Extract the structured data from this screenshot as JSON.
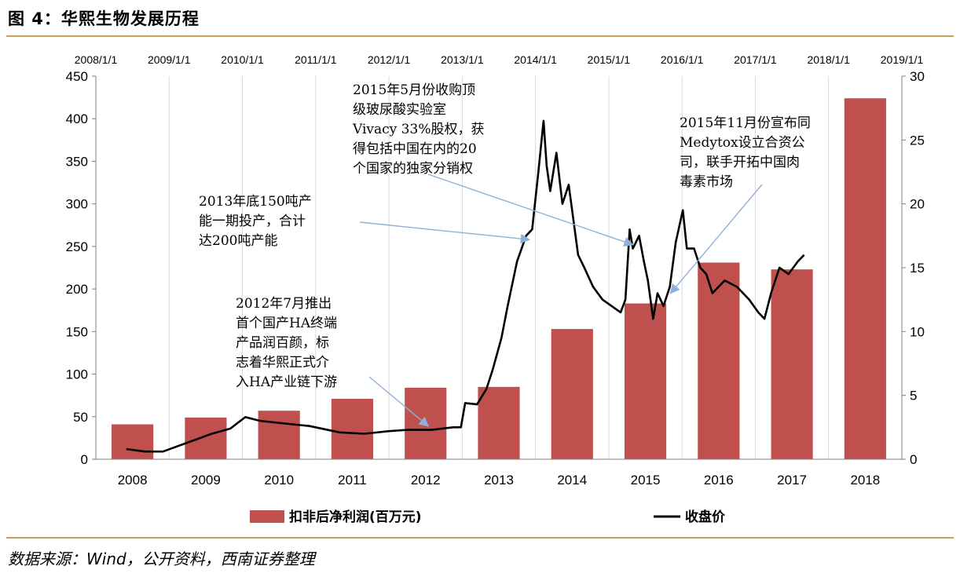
{
  "figure": {
    "title": "图 4：华熙生物发展历程",
    "source": "数据来源：Wind，公开资料，西南证券整理"
  },
  "colors": {
    "bar": "#c0504d",
    "line": "#000000",
    "rule": "#c8a25a",
    "grid": "#d9d9d9",
    "arrow": "#8fb0d8"
  },
  "chart_data": {
    "type": "bar",
    "categories": [
      "2008",
      "2009",
      "2010",
      "2011",
      "2012",
      "2013",
      "2014",
      "2015",
      "2016",
      "2017",
      "2018"
    ],
    "top_axis_ticks": [
      "2008/1/1",
      "2009/1/1",
      "2010/1/1",
      "2011/1/1",
      "2012/1/1",
      "2013/1/1",
      "2014/1/1",
      "2015/1/1",
      "2016/1/1",
      "2017/1/1",
      "2018/1/1",
      "2019/1/1"
    ],
    "left_axis": {
      "min": 0,
      "max": 450,
      "ticks": [
        0,
        50,
        100,
        150,
        200,
        250,
        300,
        350,
        400,
        450
      ]
    },
    "right_axis": {
      "min": 0,
      "max": 30,
      "ticks": [
        0,
        5,
        10,
        15,
        20,
        25,
        30
      ]
    },
    "grid": "vertical",
    "legend_position": "bottom",
    "series": [
      {
        "name": "扣非后净利润(百万元)",
        "type": "bar",
        "axis": "left",
        "values": [
          41,
          49,
          57,
          71,
          84,
          85,
          153,
          183,
          231,
          223,
          424
        ]
      },
      {
        "name": "收盘价",
        "type": "line",
        "axis": "right",
        "points": [
          [
            "2008-06-01",
            0.8
          ],
          [
            "2008-09-01",
            0.6
          ],
          [
            "2008-12-01",
            0.6
          ],
          [
            "2009-04-01",
            1.3
          ],
          [
            "2009-08-01",
            2.0
          ],
          [
            "2009-11-01",
            2.4
          ],
          [
            "2010-01-15",
            3.3
          ],
          [
            "2010-04-01",
            3.0
          ],
          [
            "2010-08-01",
            2.8
          ],
          [
            "2010-12-01",
            2.6
          ],
          [
            "2011-05-01",
            2.1
          ],
          [
            "2011-09-01",
            2.0
          ],
          [
            "2012-01-01",
            2.2
          ],
          [
            "2012-04-01",
            2.3
          ],
          [
            "2012-08-01",
            2.3
          ],
          [
            "2012-11-15",
            2.5
          ],
          [
            "2012-12-25",
            2.5
          ],
          [
            "2013-01-15",
            4.4
          ],
          [
            "2013-03-15",
            4.3
          ],
          [
            "2013-05-01",
            5.5
          ],
          [
            "2013-06-01",
            7.0
          ],
          [
            "2013-07-15",
            9.5
          ],
          [
            "2013-08-15",
            12.0
          ],
          [
            "2013-10-01",
            15.5
          ],
          [
            "2013-11-15",
            17.5
          ],
          [
            "2013-12-15",
            18.0
          ],
          [
            "2014-01-15",
            22.5
          ],
          [
            "2014-02-10",
            26.5
          ],
          [
            "2014-02-25",
            23.0
          ],
          [
            "2014-03-15",
            21.0
          ],
          [
            "2014-04-15",
            24.0
          ],
          [
            "2014-05-15",
            20.0
          ],
          [
            "2014-06-15",
            21.5
          ],
          [
            "2014-08-01",
            16.0
          ],
          [
            "2014-09-01",
            15.0
          ],
          [
            "2014-10-15",
            13.5
          ],
          [
            "2014-12-01",
            12.5
          ],
          [
            "2015-01-15",
            12.0
          ],
          [
            "2015-03-01",
            11.5
          ],
          [
            "2015-03-25",
            12.5
          ],
          [
            "2015-04-15",
            18.0
          ],
          [
            "2015-05-01",
            16.5
          ],
          [
            "2015-06-01",
            17.5
          ],
          [
            "2015-06-25",
            15.5
          ],
          [
            "2015-07-15",
            14.0
          ],
          [
            "2015-08-10",
            11.0
          ],
          [
            "2015-09-01",
            13.0
          ],
          [
            "2015-10-01",
            12.0
          ],
          [
            "2015-11-01",
            13.5
          ],
          [
            "2015-12-01",
            17.0
          ],
          [
            "2016-01-05",
            19.5
          ],
          [
            "2016-01-25",
            16.5
          ],
          [
            "2016-03-01",
            16.5
          ],
          [
            "2016-04-01",
            15.0
          ],
          [
            "2016-05-01",
            14.5
          ],
          [
            "2016-06-01",
            13.0
          ],
          [
            "2016-07-01",
            13.5
          ],
          [
            "2016-08-01",
            14.0
          ],
          [
            "2016-10-01",
            13.5
          ],
          [
            "2016-12-01",
            12.5
          ],
          [
            "2017-01-15",
            11.5
          ],
          [
            "2017-02-15",
            11.0
          ],
          [
            "2017-03-20",
            13.0
          ],
          [
            "2017-05-01",
            15.0
          ],
          [
            "2017-06-15",
            14.5
          ],
          [
            "2017-08-01",
            15.5
          ],
          [
            "2017-09-01",
            16.0
          ]
        ]
      }
    ],
    "annotations": [
      {
        "lines": [
          "2012年7月推出",
          "首个国产HA终端",
          "产品润百颜，标",
          "志着华熙正式介",
          "入HA产业链下游"
        ],
        "target_date": "2012-07-15",
        "target_value": 2.6
      },
      {
        "lines": [
          "2013年底150吨产",
          "能一期投产，合计",
          "达200吨产能"
        ],
        "target_date": "2013-12-01",
        "target_value": 17.2
      },
      {
        "lines": [
          "2015年5月份收购顶",
          "级玻尿酸实验室",
          "Vivacy 33%股权，获",
          "得包括中国在内的20",
          "个国家的独家分销权"
        ],
        "target_date": "2015-05-01",
        "target_value": 16.8
      },
      {
        "lines": [
          "2015年11月份宣布同",
          "Medytox设立合资公",
          "司，联手开拓中国肉",
          "毒素市场"
        ],
        "target_date": "2015-11-05",
        "target_value": 13.0
      }
    ]
  }
}
